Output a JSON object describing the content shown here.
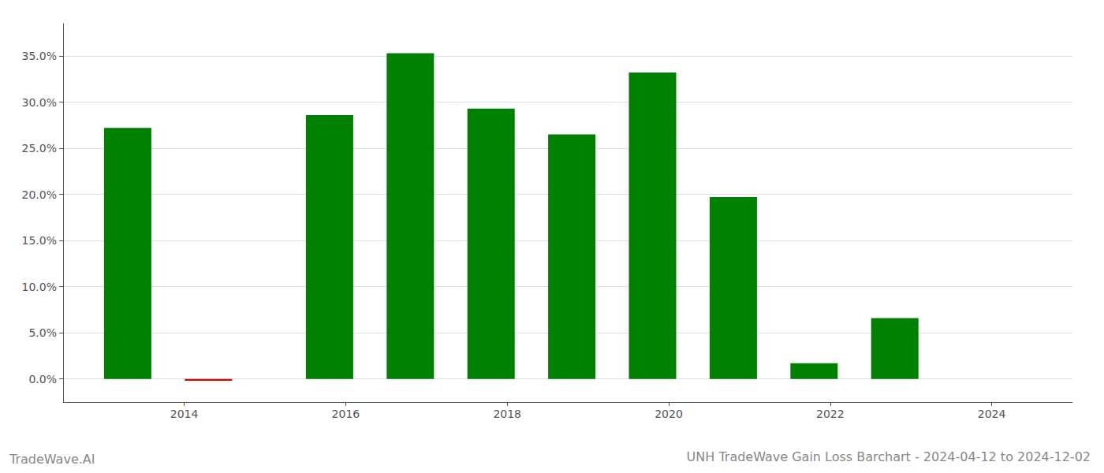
{
  "chart_data": {
    "type": "bar",
    "title": "UNH TradeWave Gain Loss Barchart - 2024-04-12 to 2024-12-02",
    "annotations": [
      "TradeWave.AI"
    ],
    "x": [
      2013.3,
      2014.3,
      2015.8,
      2016.8,
      2017.8,
      2018.8,
      2019.8,
      2020.8,
      2021.8,
      2022.8
    ],
    "values": [
      0.272,
      -0.002,
      0.286,
      0.353,
      0.293,
      0.265,
      0.332,
      0.197,
      0.017,
      0.066
    ],
    "colors": [
      "#008000",
      "#dd0000",
      "#008000",
      "#008000",
      "#008000",
      "#008000",
      "#008000",
      "#008000",
      "#008000",
      "#008000"
    ],
    "xlim": [
      2012.5,
      2025.0
    ],
    "xticks": [
      2014,
      2016,
      2018,
      2020,
      2022,
      2024
    ],
    "ylim": [
      -0.025,
      0.385
    ],
    "yticks": [
      {
        "value": 0,
        "label": "0.0%"
      },
      {
        "value": 0.05,
        "label": "5.0%"
      },
      {
        "value": 0.1,
        "label": "10.0%"
      },
      {
        "value": 0.15,
        "label": "15.0%"
      },
      {
        "value": 0.2,
        "label": "20.0%"
      },
      {
        "value": 0.25,
        "label": "25.0%"
      },
      {
        "value": 0.3,
        "label": "30.0%"
      },
      {
        "value": 0.35,
        "label": "35.0%"
      }
    ],
    "grid": true
  }
}
